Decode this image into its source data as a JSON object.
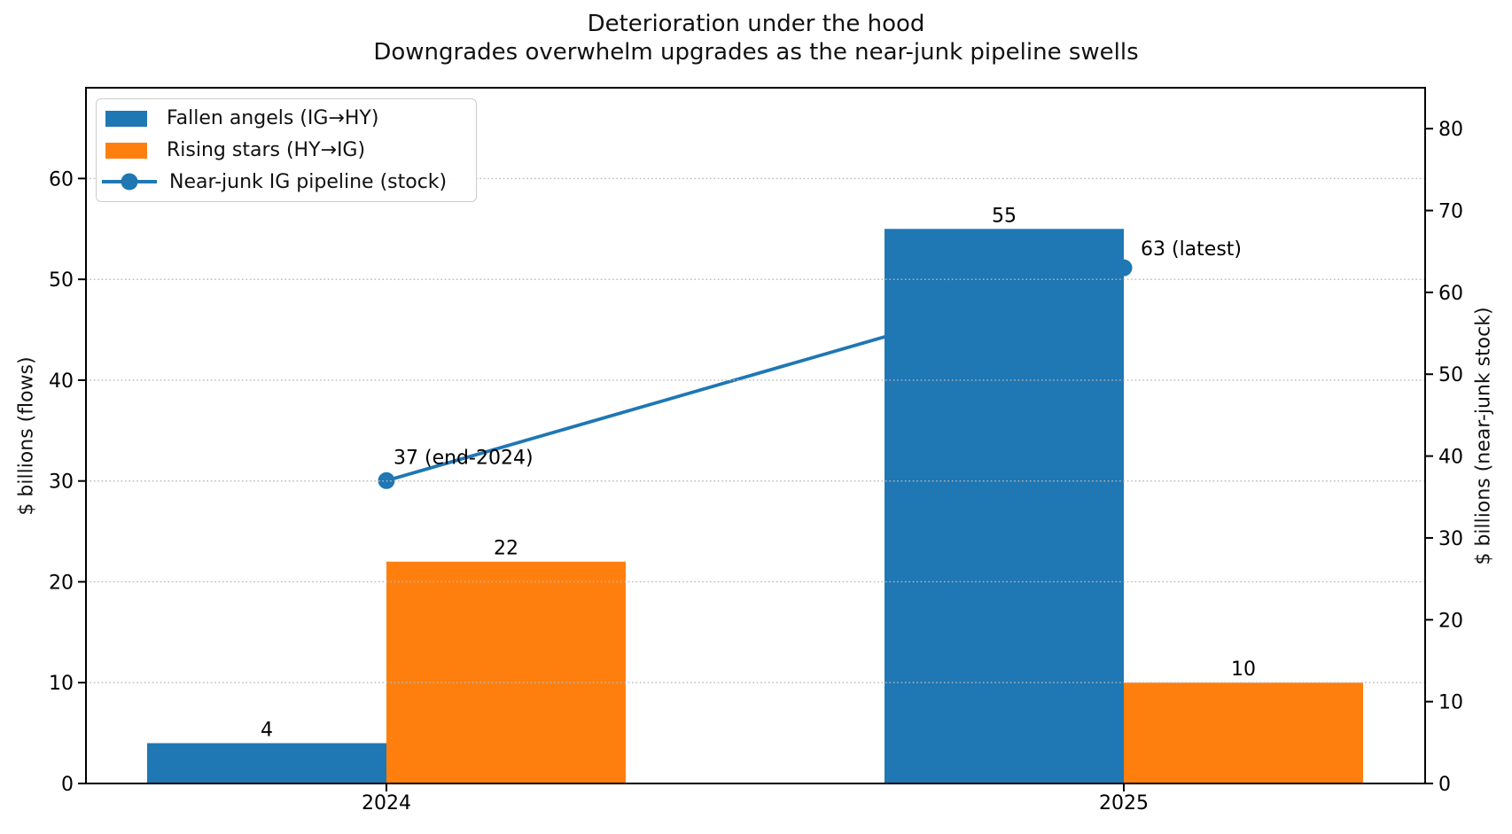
{
  "chart_data": {
    "type": "bar",
    "title": "Deterioration under the hood",
    "subtitle": "Downgrades overwhelm upgrades as the near-junk pipeline swells",
    "categories": [
      "2024",
      "2025"
    ],
    "series": [
      {
        "name": "Fallen angels (IG→HY)",
        "type": "bar",
        "axis": "left",
        "color": "#1f77b4",
        "values": [
          4,
          55
        ],
        "value_labels": [
          "4",
          "55"
        ]
      },
      {
        "name": "Rising stars (HY→IG)",
        "type": "bar",
        "axis": "left",
        "color": "#ff7f0e",
        "values": [
          22,
          10
        ],
        "value_labels": [
          "22",
          "10"
        ]
      },
      {
        "name": "Near-junk IG pipeline (stock)",
        "type": "line",
        "axis": "right",
        "color": "#1f77b4",
        "marker": "circle",
        "values": [
          37,
          63
        ],
        "point_annotations": [
          "37 (end-2024)",
          "63 (latest)"
        ]
      }
    ],
    "axes": {
      "left": {
        "label": "$ billions (flows)",
        "lim": [
          0,
          69
        ],
        "ticks": [
          0,
          10,
          20,
          30,
          40,
          50,
          60
        ]
      },
      "right": {
        "label": "$ billions (near-junk stock)",
        "lim": [
          0,
          85
        ],
        "ticks": [
          0,
          10,
          20,
          30,
          40,
          50,
          60,
          70,
          80
        ]
      },
      "x": {
        "tick_labels": [
          "2024",
          "2025"
        ]
      }
    },
    "grid": {
      "on": true,
      "which": "left-y-ticks",
      "style": "dotted",
      "color": "#b8b8b8",
      "above_bars": true
    },
    "legend": {
      "position": "upper left",
      "entries": [
        "Fallen angels (IG→HY)",
        "Rising stars (HY→IG)",
        "Near-junk IG pipeline (stock)"
      ]
    },
    "colors": {
      "bar_blue": "#1f77b4",
      "bar_orange": "#ff7f0e",
      "line_blue": "#1f77b4",
      "text": "#000000",
      "spine": "#000000"
    }
  }
}
